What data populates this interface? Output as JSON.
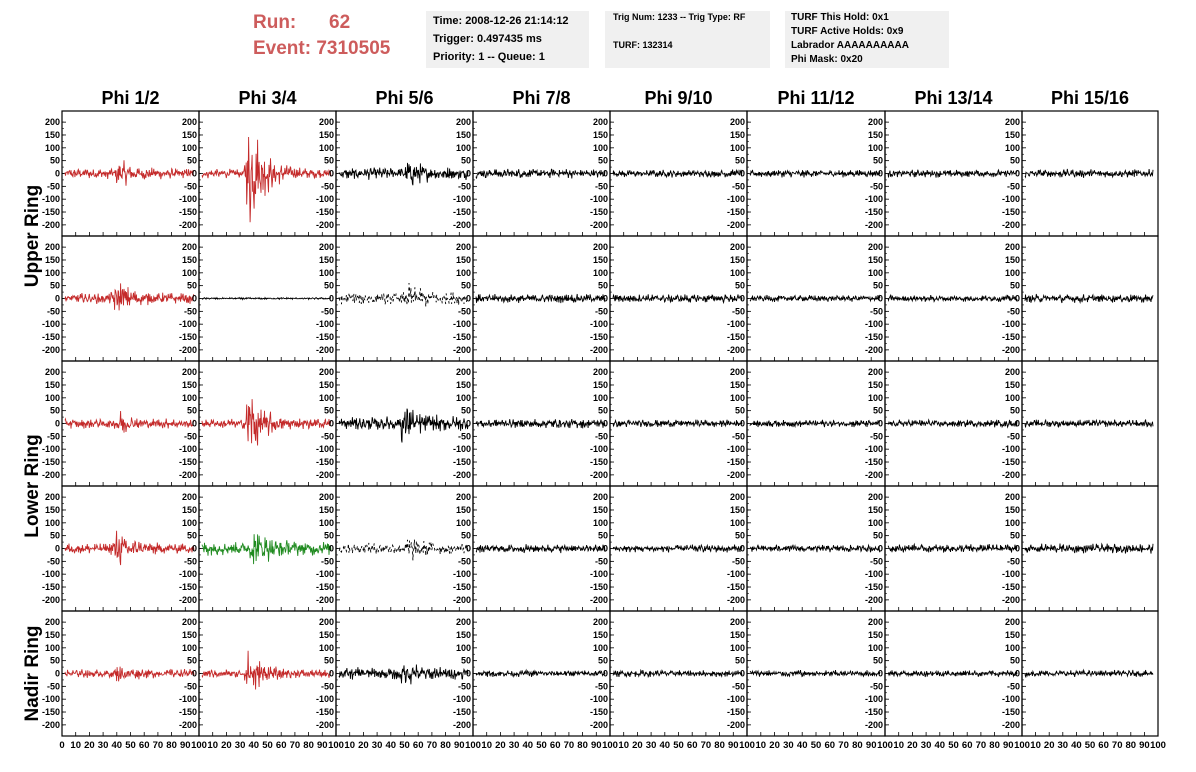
{
  "header": {
    "run_label": "Run:",
    "run_value": "62",
    "event_label": "Event:",
    "event_value": "7310505",
    "time_line": "Time: 2008-12-26 21:14:12",
    "trigger_line": "Trigger: 0.497435 ms",
    "priority_line": "Priority: 1 -- Queue: 1",
    "trig_line": "Trig Num: 1233 -- Trig Type: RF",
    "turf_line": "TURF: 132314",
    "turf_hold_line": "TURF This Hold: 0x1",
    "turf_active_line": "TURF Active Holds: 0x9",
    "labrador_line": "Labrador AAAAAAAAAA",
    "phi_mask_line": "Phi Mask: 0x20",
    "accent_color": "#cd5c5c"
  },
  "chart_data": {
    "type": "line",
    "columns": [
      "Phi 1/2",
      "Phi 3/4",
      "Phi 5/6",
      "Phi 7/8",
      "Phi 9/10",
      "Phi 11/12",
      "Phi 13/14",
      "Phi 15/16"
    ],
    "ring_labels": [
      "Upper Ring",
      "Lower Ring",
      "Nadir Ring"
    ],
    "xlim": [
      0,
      100
    ],
    "ylim": [
      -220,
      220
    ],
    "y_ticks": [
      -200,
      -150,
      -100,
      -50,
      0,
      50,
      100,
      150,
      200
    ],
    "x_ticks": [
      0,
      10,
      20,
      30,
      40,
      50,
      60,
      70,
      80,
      90,
      100
    ],
    "x_tick_labels": [
      "0",
      "10",
      "20",
      "30",
      "40",
      "50",
      "60",
      "70",
      "80",
      "90",
      "100"
    ],
    "trace_colors": {
      "red": "#c42a2a",
      "black": "#000000",
      "green": "#1f8a1f"
    },
    "panel_rows": [
      {
        "ring": "Upper Ring",
        "half": 1,
        "y_range_shown": [
          -220,
          220
        ],
        "traces": [
          {
            "color": "red",
            "amp": 22,
            "burst_center": 42,
            "burst_amp": 45,
            "style": "solid"
          },
          {
            "color": "red",
            "amp": 20,
            "burst_center": 37,
            "burst_amp": 260,
            "style": "solid"
          },
          {
            "color": "black",
            "amp": 25,
            "burst_center": 55,
            "burst_amp": 50,
            "style": "solid"
          },
          {
            "color": "black",
            "amp": 20,
            "burst_center": 0,
            "burst_amp": 0,
            "style": "solid"
          },
          {
            "color": "black",
            "amp": 16,
            "burst_center": 0,
            "burst_amp": 0,
            "style": "solid"
          },
          {
            "color": "black",
            "amp": 16,
            "burst_center": 0,
            "burst_amp": 0,
            "style": "solid"
          },
          {
            "color": "black",
            "amp": 16,
            "burst_center": 0,
            "burst_amp": 0,
            "style": "solid"
          },
          {
            "color": "black",
            "amp": 18,
            "burst_center": 0,
            "burst_amp": 0,
            "style": "solid"
          }
        ]
      },
      {
        "ring": "Upper Ring",
        "half": 2,
        "y_range_shown": [
          -220,
          220
        ],
        "traces": [
          {
            "color": "red",
            "amp": 22,
            "burst_center": 40,
            "burst_amp": 75,
            "style": "solid"
          },
          {
            "color": "black",
            "amp": 4,
            "burst_center": 0,
            "burst_amp": 0,
            "style": "solid"
          },
          {
            "color": "black",
            "amp": 25,
            "burst_center": 55,
            "burst_amp": 45,
            "style": "dashed"
          },
          {
            "color": "black",
            "amp": 18,
            "burst_center": 0,
            "burst_amp": 0,
            "style": "solid"
          },
          {
            "color": "black",
            "amp": 18,
            "burst_center": 0,
            "burst_amp": 0,
            "style": "solid"
          },
          {
            "color": "black",
            "amp": 14,
            "burst_center": 0,
            "burst_amp": 0,
            "style": "solid"
          },
          {
            "color": "black",
            "amp": 14,
            "burst_center": 0,
            "burst_amp": 0,
            "style": "solid"
          },
          {
            "color": "black",
            "amp": 18,
            "burst_center": 0,
            "burst_amp": 0,
            "style": "solid"
          }
        ]
      },
      {
        "ring": "Lower Ring",
        "half": 1,
        "y_range_shown": [
          -220,
          220
        ],
        "traces": [
          {
            "color": "red",
            "amp": 20,
            "burst_center": 42,
            "burst_amp": 40,
            "style": "solid"
          },
          {
            "color": "red",
            "amp": 20,
            "burst_center": 37,
            "burst_amp": 150,
            "style": "solid"
          },
          {
            "color": "black",
            "amp": 30,
            "burst_center": 50,
            "burst_amp": 70,
            "style": "solid"
          },
          {
            "color": "black",
            "amp": 20,
            "burst_center": 0,
            "burst_amp": 0,
            "style": "solid"
          },
          {
            "color": "black",
            "amp": 16,
            "burst_center": 0,
            "burst_amp": 0,
            "style": "solid"
          },
          {
            "color": "black",
            "amp": 16,
            "burst_center": 0,
            "burst_amp": 0,
            "style": "solid"
          },
          {
            "color": "black",
            "amp": 16,
            "burst_center": 0,
            "burst_amp": 0,
            "style": "solid"
          },
          {
            "color": "black",
            "amp": 16,
            "burst_center": 0,
            "burst_amp": 0,
            "style": "solid"
          }
        ]
      },
      {
        "ring": "Lower Ring",
        "half": 2,
        "y_range_shown": [
          -220,
          220
        ],
        "traces": [
          {
            "color": "red",
            "amp": 22,
            "burst_center": 40,
            "burst_amp": 80,
            "style": "solid"
          },
          {
            "color": "green",
            "amp": 30,
            "burst_center": 40,
            "burst_amp": 70,
            "style": "solid"
          },
          {
            "color": "black",
            "amp": 22,
            "burst_center": 55,
            "burst_amp": 40,
            "style": "dashed"
          },
          {
            "color": "black",
            "amp": 18,
            "burst_center": 0,
            "burst_amp": 0,
            "style": "solid"
          },
          {
            "color": "black",
            "amp": 16,
            "burst_center": 0,
            "burst_amp": 0,
            "style": "solid"
          },
          {
            "color": "black",
            "amp": 16,
            "burst_center": 0,
            "burst_amp": 0,
            "style": "solid"
          },
          {
            "color": "black",
            "amp": 18,
            "burst_center": 0,
            "burst_amp": 0,
            "style": "solid"
          },
          {
            "color": "black",
            "amp": 20,
            "burst_center": 0,
            "burst_amp": 0,
            "style": "solid"
          }
        ]
      },
      {
        "ring": "Nadir Ring",
        "half": 1,
        "y_range_shown": [
          -220,
          220
        ],
        "traces": [
          {
            "color": "red",
            "amp": 18,
            "burst_center": 42,
            "burst_amp": 30,
            "style": "solid"
          },
          {
            "color": "red",
            "amp": 18,
            "burst_center": 37,
            "burst_amp": 100,
            "style": "solid"
          },
          {
            "color": "black",
            "amp": 25,
            "burst_center": 50,
            "burst_amp": 40,
            "style": "solid"
          },
          {
            "color": "black",
            "amp": 14,
            "burst_center": 0,
            "burst_amp": 0,
            "style": "solid"
          },
          {
            "color": "black",
            "amp": 14,
            "burst_center": 0,
            "burst_amp": 0,
            "style": "solid"
          },
          {
            "color": "black",
            "amp": 14,
            "burst_center": 0,
            "burst_amp": 0,
            "style": "solid"
          },
          {
            "color": "black",
            "amp": 14,
            "burst_center": 0,
            "burst_amp": 0,
            "style": "solid"
          },
          {
            "color": "black",
            "amp": 14,
            "burst_center": 0,
            "burst_amp": 0,
            "style": "solid"
          }
        ]
      }
    ]
  }
}
